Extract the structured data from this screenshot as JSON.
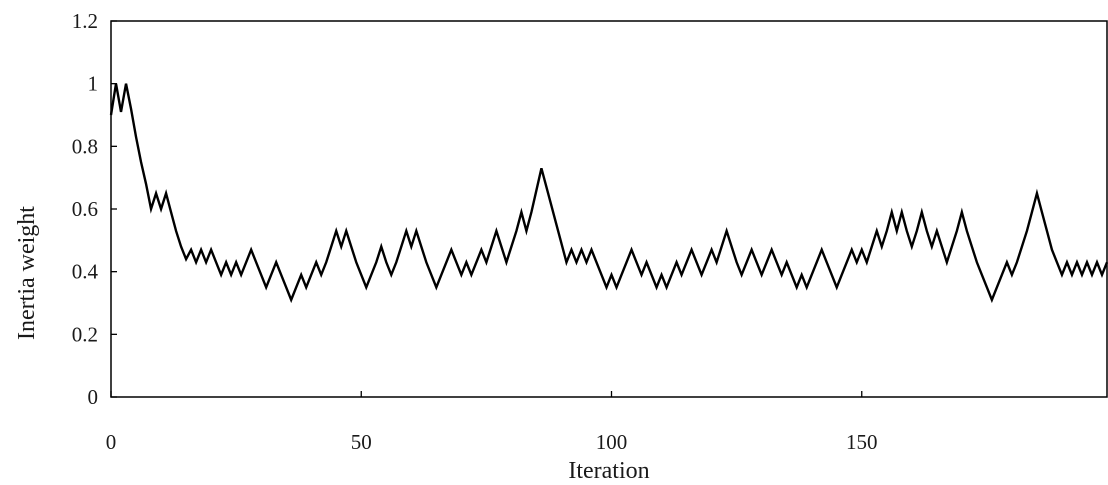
{
  "chart_data": {
    "type": "line",
    "title": "",
    "xlabel": "Iteration",
    "ylabel": "Inertia weight",
    "xlim": [
      0,
      199
    ],
    "ylim": [
      0,
      1.2
    ],
    "xticks": [
      0,
      50,
      100,
      150
    ],
    "yticks": [
      0,
      0.2,
      0.4,
      0.6,
      0.8,
      1,
      1.2
    ],
    "xtick_labels": [
      "0",
      "50",
      "100",
      "150"
    ],
    "ytick_labels": [
      "0",
      "0.2",
      "0.4",
      "0.6",
      "0.8",
      "1",
      "1.2"
    ],
    "grid": false,
    "legend": "none",
    "series": [
      {
        "color": "#000000",
        "points": [
          [
            0,
            0.9
          ],
          [
            1,
            1.0
          ],
          [
            2,
            0.91
          ],
          [
            3,
            1.0
          ],
          [
            4,
            0.92
          ],
          [
            5,
            0.83
          ],
          [
            6,
            0.75
          ],
          [
            7,
            0.68
          ],
          [
            8,
            0.6
          ],
          [
            9,
            0.65
          ],
          [
            10,
            0.6
          ],
          [
            11,
            0.65
          ],
          [
            12,
            0.59
          ],
          [
            13,
            0.53
          ],
          [
            14,
            0.48
          ],
          [
            15,
            0.44
          ],
          [
            16,
            0.47
          ],
          [
            17,
            0.43
          ],
          [
            18,
            0.47
          ],
          [
            19,
            0.43
          ],
          [
            20,
            0.47
          ],
          [
            21,
            0.43
          ],
          [
            22,
            0.39
          ],
          [
            23,
            0.43
          ],
          [
            24,
            0.39
          ],
          [
            25,
            0.43
          ],
          [
            26,
            0.39
          ],
          [
            27,
            0.43
          ],
          [
            28,
            0.47
          ],
          [
            29,
            0.43
          ],
          [
            30,
            0.39
          ],
          [
            31,
            0.35
          ],
          [
            32,
            0.39
          ],
          [
            33,
            0.43
          ],
          [
            34,
            0.39
          ],
          [
            35,
            0.35
          ],
          [
            36,
            0.31
          ],
          [
            37,
            0.35
          ],
          [
            38,
            0.39
          ],
          [
            39,
            0.35
          ],
          [
            40,
            0.39
          ],
          [
            41,
            0.43
          ],
          [
            42,
            0.39
          ],
          [
            43,
            0.43
          ],
          [
            44,
            0.48
          ],
          [
            45,
            0.53
          ],
          [
            46,
            0.48
          ],
          [
            47,
            0.53
          ],
          [
            48,
            0.48
          ],
          [
            49,
            0.43
          ],
          [
            50,
            0.39
          ],
          [
            51,
            0.35
          ],
          [
            52,
            0.39
          ],
          [
            53,
            0.43
          ],
          [
            54,
            0.48
          ],
          [
            55,
            0.43
          ],
          [
            56,
            0.39
          ],
          [
            57,
            0.43
          ],
          [
            58,
            0.48
          ],
          [
            59,
            0.53
          ],
          [
            60,
            0.48
          ],
          [
            61,
            0.53
          ],
          [
            62,
            0.48
          ],
          [
            63,
            0.43
          ],
          [
            64,
            0.39
          ],
          [
            65,
            0.35
          ],
          [
            66,
            0.39
          ],
          [
            67,
            0.43
          ],
          [
            68,
            0.47
          ],
          [
            69,
            0.43
          ],
          [
            70,
            0.39
          ],
          [
            71,
            0.43
          ],
          [
            72,
            0.39
          ],
          [
            73,
            0.43
          ],
          [
            74,
            0.47
          ],
          [
            75,
            0.43
          ],
          [
            76,
            0.48
          ],
          [
            77,
            0.53
          ],
          [
            78,
            0.48
          ],
          [
            79,
            0.43
          ],
          [
            80,
            0.48
          ],
          [
            81,
            0.53
          ],
          [
            82,
            0.59
          ],
          [
            83,
            0.53
          ],
          [
            84,
            0.59
          ],
          [
            85,
            0.66
          ],
          [
            86,
            0.73
          ],
          [
            87,
            0.67
          ],
          [
            88,
            0.61
          ],
          [
            89,
            0.55
          ],
          [
            90,
            0.49
          ],
          [
            91,
            0.43
          ],
          [
            92,
            0.47
          ],
          [
            93,
            0.43
          ],
          [
            94,
            0.47
          ],
          [
            95,
            0.43
          ],
          [
            96,
            0.47
          ],
          [
            97,
            0.43
          ],
          [
            98,
            0.39
          ],
          [
            99,
            0.35
          ],
          [
            100,
            0.39
          ],
          [
            101,
            0.35
          ],
          [
            102,
            0.39
          ],
          [
            103,
            0.43
          ],
          [
            104,
            0.47
          ],
          [
            105,
            0.43
          ],
          [
            106,
            0.39
          ],
          [
            107,
            0.43
          ],
          [
            108,
            0.39
          ],
          [
            109,
            0.35
          ],
          [
            110,
            0.39
          ],
          [
            111,
            0.35
          ],
          [
            112,
            0.39
          ],
          [
            113,
            0.43
          ],
          [
            114,
            0.39
          ],
          [
            115,
            0.43
          ],
          [
            116,
            0.47
          ],
          [
            117,
            0.43
          ],
          [
            118,
            0.39
          ],
          [
            119,
            0.43
          ],
          [
            120,
            0.47
          ],
          [
            121,
            0.43
          ],
          [
            122,
            0.48
          ],
          [
            123,
            0.53
          ],
          [
            124,
            0.48
          ],
          [
            125,
            0.43
          ],
          [
            126,
            0.39
          ],
          [
            127,
            0.43
          ],
          [
            128,
            0.47
          ],
          [
            129,
            0.43
          ],
          [
            130,
            0.39
          ],
          [
            131,
            0.43
          ],
          [
            132,
            0.47
          ],
          [
            133,
            0.43
          ],
          [
            134,
            0.39
          ],
          [
            135,
            0.43
          ],
          [
            136,
            0.39
          ],
          [
            137,
            0.35
          ],
          [
            138,
            0.39
          ],
          [
            139,
            0.35
          ],
          [
            140,
            0.39
          ],
          [
            141,
            0.43
          ],
          [
            142,
            0.47
          ],
          [
            143,
            0.43
          ],
          [
            144,
            0.39
          ],
          [
            145,
            0.35
          ],
          [
            146,
            0.39
          ],
          [
            147,
            0.43
          ],
          [
            148,
            0.47
          ],
          [
            149,
            0.43
          ],
          [
            150,
            0.47
          ],
          [
            151,
            0.43
          ],
          [
            152,
            0.48
          ],
          [
            153,
            0.53
          ],
          [
            154,
            0.48
          ],
          [
            155,
            0.53
          ],
          [
            156,
            0.59
          ],
          [
            157,
            0.53
          ],
          [
            158,
            0.59
          ],
          [
            159,
            0.53
          ],
          [
            160,
            0.48
          ],
          [
            161,
            0.53
          ],
          [
            162,
            0.59
          ],
          [
            163,
            0.53
          ],
          [
            164,
            0.48
          ],
          [
            165,
            0.53
          ],
          [
            166,
            0.48
          ],
          [
            167,
            0.43
          ],
          [
            168,
            0.48
          ],
          [
            169,
            0.53
          ],
          [
            170,
            0.59
          ],
          [
            171,
            0.53
          ],
          [
            172,
            0.48
          ],
          [
            173,
            0.43
          ],
          [
            174,
            0.39
          ],
          [
            175,
            0.35
          ],
          [
            176,
            0.31
          ],
          [
            177,
            0.35
          ],
          [
            178,
            0.39
          ],
          [
            179,
            0.43
          ],
          [
            180,
            0.39
          ],
          [
            181,
            0.43
          ],
          [
            182,
            0.48
          ],
          [
            183,
            0.53
          ],
          [
            184,
            0.59
          ],
          [
            185,
            0.65
          ],
          [
            186,
            0.59
          ],
          [
            187,
            0.53
          ],
          [
            188,
            0.47
          ],
          [
            189,
            0.43
          ],
          [
            190,
            0.39
          ],
          [
            191,
            0.43
          ],
          [
            192,
            0.39
          ],
          [
            193,
            0.43
          ],
          [
            194,
            0.39
          ],
          [
            195,
            0.43
          ],
          [
            196,
            0.39
          ],
          [
            197,
            0.43
          ],
          [
            198,
            0.39
          ],
          [
            199,
            0.43
          ]
        ]
      }
    ]
  }
}
